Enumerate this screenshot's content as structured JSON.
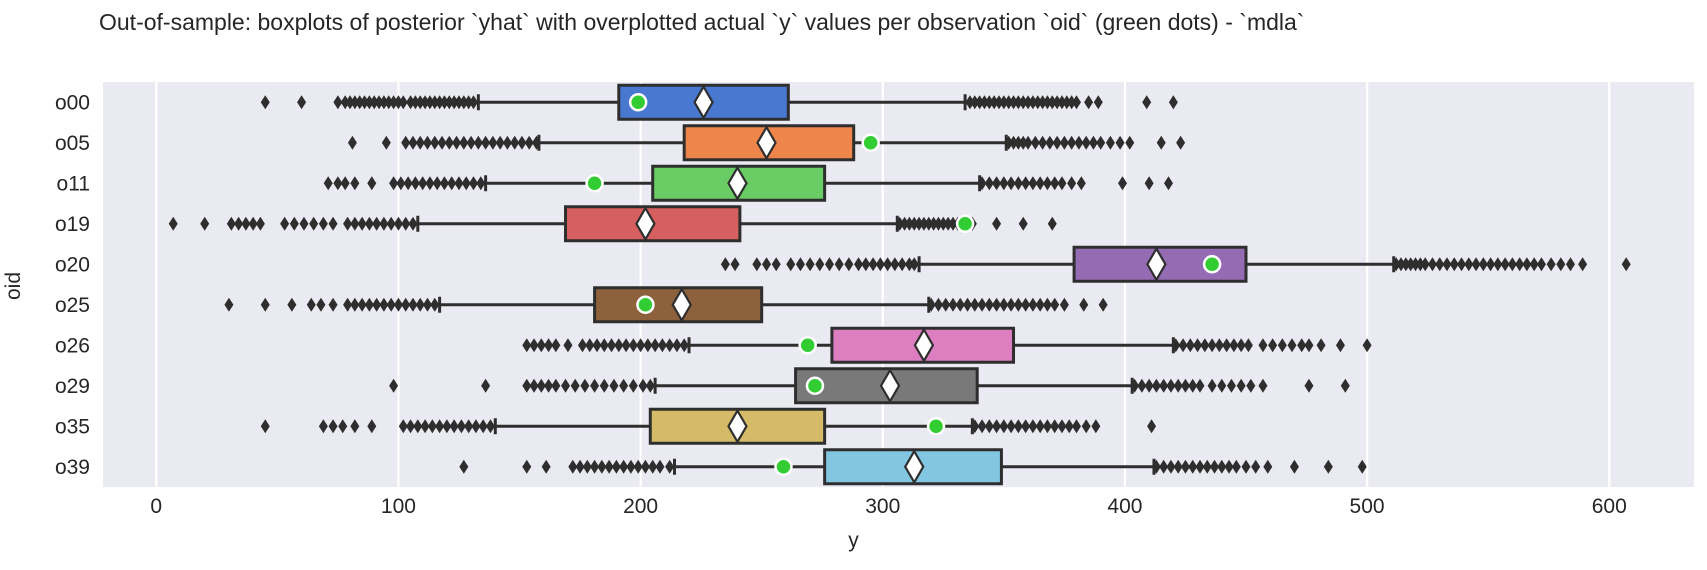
{
  "title": "Out-of-sample: boxplots of posterior `yhat` with overplotted actual `y` values per observation `oid` (green dots) - `mdla`",
  "axes": {
    "xlabel": "y",
    "ylabel": "oid"
  },
  "style": {
    "figure_bg": "#ffffff",
    "plot_bg": "#eaeaf2",
    "grid_color": "#ffffff",
    "edge_color": "#2e2e2e",
    "mean_marker_fill": "#ffffff",
    "actual_dot_fill": "#32cd32",
    "actual_dot_edge": "#ffffff",
    "text_color": "#262626"
  },
  "chart_data": {
    "type": "boxplot",
    "orient": "horizontal",
    "title": "Out-of-sample: boxplots of posterior `yhat` with overplotted actual `y` values per observation `oid` (green dots) - `mdla`",
    "xlabel": "y",
    "ylabel": "oid",
    "xticks": [
      0,
      100,
      200,
      300,
      400,
      500,
      600
    ],
    "xlim": [
      -22,
      635
    ],
    "grid": "vertical-white-on-lavender",
    "legend": "none",
    "mean_marker": "white-diamond",
    "actual_marker": "green-dot",
    "categories": [
      "o00",
      "o05",
      "o11",
      "o19",
      "o20",
      "o25",
      "o26",
      "o29",
      "o35",
      "o39"
    ],
    "series": [
      {
        "oid": "o00",
        "color": "#4878d0",
        "whisker_lo": 133,
        "q1": 191,
        "mean": 226,
        "q3": 261,
        "whisker_hi": 334,
        "actual_y": 199,
        "outliers": [
          45,
          60,
          75,
          78,
          80,
          82,
          84,
          86,
          88,
          90,
          92,
          94,
          96,
          98,
          100,
          102,
          105,
          107,
          109,
          111,
          113,
          115,
          117,
          119,
          121,
          123,
          125,
          127,
          129,
          131,
          336,
          338,
          340,
          342,
          344,
          346,
          348,
          350,
          352,
          354,
          356,
          358,
          360,
          362,
          364,
          366,
          368,
          370,
          372,
          374,
          376,
          378,
          380,
          385,
          389,
          409,
          420
        ]
      },
      {
        "oid": "o05",
        "color": "#ee854a",
        "whisker_lo": 158,
        "q1": 218,
        "mean": 252,
        "q3": 288,
        "whisker_hi": 351,
        "actual_y": 295,
        "outliers": [
          81,
          95,
          103,
          106,
          109,
          112,
          115,
          118,
          121,
          124,
          127,
          130,
          133,
          136,
          139,
          142,
          145,
          148,
          151,
          154,
          157,
          352,
          354,
          356,
          358,
          360,
          363,
          366,
          369,
          372,
          375,
          378,
          381,
          384,
          387,
          390,
          394,
          398,
          402,
          415,
          423
        ]
      },
      {
        "oid": "o11",
        "color": "#6acc64",
        "whisker_lo": 136,
        "q1": 205,
        "mean": 240,
        "q3": 276,
        "whisker_hi": 340,
        "actual_y": 181,
        "outliers": [
          71,
          75,
          78,
          82,
          89,
          98,
          101,
          104,
          107,
          110,
          113,
          116,
          119,
          122,
          125,
          128,
          131,
          134,
          341,
          344,
          347,
          350,
          353,
          356,
          359,
          362,
          365,
          368,
          371,
          374,
          378,
          382,
          399,
          410,
          418
        ]
      },
      {
        "oid": "o19",
        "color": "#d65f5f",
        "whisker_lo": 108,
        "q1": 169,
        "mean": 202,
        "q3": 241,
        "whisker_hi": 306,
        "actual_y": 334,
        "outliers": [
          7,
          20,
          31,
          34,
          37,
          40,
          43,
          53,
          57,
          61,
          65,
          69,
          73,
          79,
          82,
          85,
          88,
          91,
          94,
          97,
          100,
          103,
          106,
          307,
          309,
          311,
          313,
          315,
          317,
          319,
          321,
          323,
          325,
          327,
          329,
          331,
          334,
          337,
          347,
          358,
          370
        ]
      },
      {
        "oid": "o20",
        "color": "#956cb4",
        "whisker_lo": 315,
        "q1": 379,
        "mean": 413,
        "q3": 450,
        "whisker_hi": 511,
        "actual_y": 436,
        "outliers": [
          235,
          239,
          248,
          252,
          256,
          262,
          266,
          270,
          274,
          278,
          282,
          286,
          290,
          293,
          296,
          299,
          302,
          305,
          308,
          311,
          313,
          512,
          514,
          516,
          518,
          520,
          522,
          524,
          527,
          530,
          533,
          536,
          539,
          542,
          545,
          548,
          551,
          554,
          557,
          560,
          563,
          566,
          569,
          572,
          576,
          580,
          584,
          589,
          607
        ]
      },
      {
        "oid": "o25",
        "color": "#8c613c",
        "whisker_lo": 117,
        "q1": 181,
        "mean": 217,
        "q3": 250,
        "whisker_hi": 319,
        "actual_y": 202,
        "outliers": [
          30,
          45,
          56,
          64,
          68,
          73,
          79,
          82,
          85,
          88,
          91,
          94,
          97,
          100,
          103,
          106,
          109,
          112,
          115,
          320,
          323,
          326,
          329,
          332,
          335,
          338,
          341,
          344,
          347,
          350,
          353,
          356,
          359,
          362,
          365,
          368,
          371,
          375,
          383,
          391
        ]
      },
      {
        "oid": "o26",
        "color": "#dc7ec0",
        "whisker_lo": 220,
        "q1": 279,
        "mean": 317,
        "q3": 354,
        "whisker_hi": 420,
        "actual_y": 269,
        "outliers": [
          153,
          156,
          159,
          162,
          165,
          170,
          176,
          179,
          182,
          185,
          188,
          191,
          194,
          197,
          200,
          203,
          206,
          209,
          212,
          215,
          218,
          421,
          424,
          427,
          430,
          433,
          436,
          439,
          442,
          445,
          448,
          451,
          457,
          461,
          465,
          469,
          473,
          476,
          481,
          489,
          500
        ]
      },
      {
        "oid": "o29",
        "color": "#797979",
        "whisker_lo": 206,
        "q1": 264,
        "mean": 303,
        "q3": 339,
        "whisker_hi": 403,
        "actual_y": 272,
        "outliers": [
          98,
          136,
          153,
          156,
          159,
          162,
          165,
          169,
          173,
          177,
          181,
          185,
          189,
          193,
          197,
          201,
          204,
          404,
          407,
          410,
          413,
          416,
          419,
          422,
          425,
          428,
          431,
          436,
          440,
          444,
          448,
          452,
          457,
          476,
          491
        ]
      },
      {
        "oid": "o35",
        "color": "#d5bb67",
        "whisker_lo": 140,
        "q1": 204,
        "mean": 240,
        "q3": 276,
        "whisker_hi": 337,
        "actual_y": 322,
        "outliers": [
          45,
          69,
          73,
          77,
          82,
          89,
          102,
          105,
          108,
          111,
          114,
          117,
          120,
          123,
          126,
          129,
          132,
          135,
          138,
          338,
          341,
          344,
          347,
          350,
          353,
          356,
          359,
          362,
          365,
          368,
          371,
          374,
          377,
          380,
          384,
          388,
          411
        ]
      },
      {
        "oid": "o39",
        "color": "#82c6e2",
        "whisker_lo": 214,
        "q1": 276,
        "mean": 313,
        "q3": 349,
        "whisker_hi": 412,
        "actual_y": 259,
        "outliers": [
          127,
          153,
          161,
          172,
          175,
          178,
          181,
          184,
          187,
          190,
          193,
          196,
          199,
          202,
          205,
          208,
          212,
          413,
          416,
          419,
          422,
          425,
          428,
          431,
          434,
          437,
          440,
          443,
          446,
          450,
          454,
          459,
          470,
          484,
          498
        ]
      }
    ]
  }
}
